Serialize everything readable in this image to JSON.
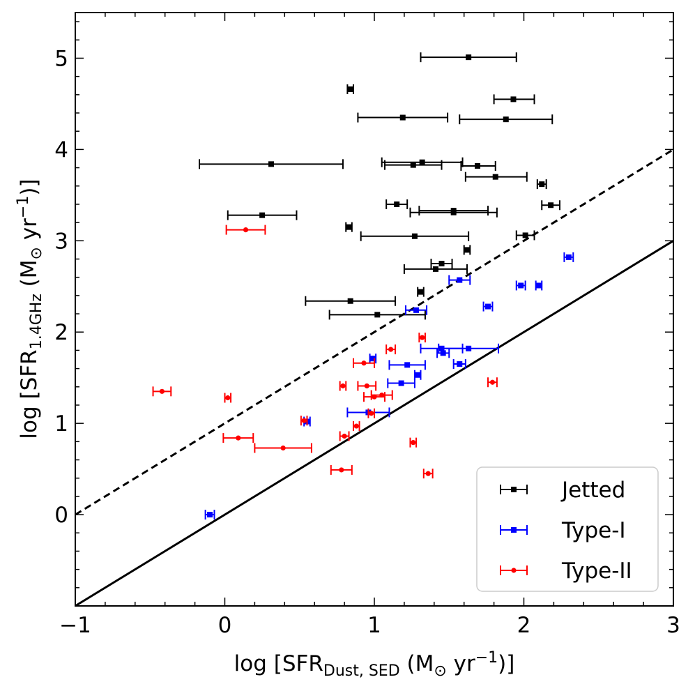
{
  "chart_data": {
    "type": "scatter",
    "title": "",
    "xlabel": {
      "prefix": "log [SFR",
      "sub": "Dust, SED",
      "mid": " (M",
      "sun": "⊙",
      "unit": " yr",
      "sup": "−1",
      "suffix": ")]"
    },
    "ylabel": {
      "prefix": "log [SFR",
      "sub": "1.4GHz",
      "mid": " (M",
      "sun": "⊙",
      "unit": " yr",
      "sup": "−1",
      "suffix": ")]"
    },
    "xlim": [
      -1,
      3
    ],
    "ylim": [
      -1,
      5.5
    ],
    "xticks": [
      -1,
      0,
      1,
      2,
      3
    ],
    "xtick_labels": [
      "−1",
      "0",
      "1",
      "2",
      "3"
    ],
    "yticks": [
      0,
      1,
      2,
      3,
      4,
      5
    ],
    "ytick_labels": [
      "0",
      "1",
      "2",
      "3",
      "4",
      "5"
    ],
    "reference_lines": [
      {
        "name": "one-to-one",
        "style": "solid",
        "intercept": 0
      },
      {
        "name": "offset-one-dex",
        "style": "dashed",
        "intercept": 1
      }
    ],
    "legend_position": "bottom-right",
    "series": [
      {
        "name": "Jetted",
        "color": "#000000",
        "marker": "square",
        "points": [
          {
            "x": 1.63,
            "y": 5.01,
            "xlo": 1.31,
            "xhi": 1.95
          },
          {
            "x": 0.84,
            "y": 4.66,
            "xlo": 0.82,
            "xhi": 0.86
          },
          {
            "x": 1.93,
            "y": 4.55,
            "xlo": 1.8,
            "xhi": 2.07
          },
          {
            "x": 1.19,
            "y": 4.35,
            "xlo": 0.89,
            "xhi": 1.49
          },
          {
            "x": 1.88,
            "y": 4.33,
            "xlo": 1.57,
            "xhi": 2.19
          },
          {
            "x": 0.31,
            "y": 3.84,
            "xlo": -0.17,
            "xhi": 0.79
          },
          {
            "x": 1.32,
            "y": 3.86,
            "xlo": 1.05,
            "xhi": 1.59
          },
          {
            "x": 1.26,
            "y": 3.83,
            "xlo": 1.07,
            "xhi": 1.45
          },
          {
            "x": 1.69,
            "y": 3.82,
            "xlo": 1.58,
            "xhi": 1.81
          },
          {
            "x": 1.81,
            "y": 3.7,
            "xlo": 1.61,
            "xhi": 2.02
          },
          {
            "x": 2.12,
            "y": 3.62,
            "xlo": 2.09,
            "xhi": 2.15
          },
          {
            "x": 1.15,
            "y": 3.4,
            "xlo": 1.08,
            "xhi": 1.22
          },
          {
            "x": 2.18,
            "y": 3.39,
            "xlo": 2.12,
            "xhi": 2.24
          },
          {
            "x": 1.53,
            "y": 3.33,
            "xlo": 1.3,
            "xhi": 1.76
          },
          {
            "x": 1.53,
            "y": 3.31,
            "xlo": 1.24,
            "xhi": 1.82
          },
          {
            "x": 0.25,
            "y": 3.28,
            "xlo": 0.02,
            "xhi": 0.48
          },
          {
            "x": 0.83,
            "y": 3.15,
            "xlo": 0.81,
            "xhi": 0.85
          },
          {
            "x": 2.01,
            "y": 3.06,
            "xlo": 1.95,
            "xhi": 2.07
          },
          {
            "x": 1.27,
            "y": 3.05,
            "xlo": 0.91,
            "xhi": 1.63
          },
          {
            "x": 1.62,
            "y": 2.9,
            "xlo": 1.6,
            "xhi": 1.64
          },
          {
            "x": 1.45,
            "y": 2.75,
            "xlo": 1.38,
            "xhi": 1.52
          },
          {
            "x": 1.41,
            "y": 2.69,
            "xlo": 1.2,
            "xhi": 1.62
          },
          {
            "x": 1.31,
            "y": 2.44,
            "xlo": 1.29,
            "xhi": 1.33
          },
          {
            "x": 0.84,
            "y": 2.34,
            "xlo": 0.54,
            "xhi": 1.14
          },
          {
            "x": 1.02,
            "y": 2.19,
            "xlo": 0.7,
            "xhi": 1.34
          }
        ]
      },
      {
        "name": "Type-I",
        "color": "#0000ff",
        "marker": "square",
        "points": [
          {
            "x": 2.3,
            "y": 2.82,
            "xlo": 2.27,
            "xhi": 2.33
          },
          {
            "x": 1.57,
            "y": 2.57,
            "xlo": 1.5,
            "xhi": 1.64
          },
          {
            "x": 1.98,
            "y": 2.51,
            "xlo": 1.95,
            "xhi": 2.01
          },
          {
            "x": 2.1,
            "y": 2.51,
            "xlo": 2.08,
            "xhi": 2.12
          },
          {
            "x": 1.76,
            "y": 2.28,
            "xlo": 1.73,
            "xhi": 1.79
          },
          {
            "x": 1.28,
            "y": 2.24,
            "xlo": 1.21,
            "xhi": 1.35
          },
          {
            "x": 1.45,
            "y": 1.82,
            "xlo": 1.31,
            "xhi": 1.59
          },
          {
            "x": 1.63,
            "y": 1.82,
            "xlo": 1.43,
            "xhi": 1.83
          },
          {
            "x": 1.46,
            "y": 1.77,
            "xlo": 1.42,
            "xhi": 1.5
          },
          {
            "x": 0.99,
            "y": 1.71,
            "xlo": 0.97,
            "xhi": 1.01
          },
          {
            "x": 1.22,
            "y": 1.64,
            "xlo": 1.1,
            "xhi": 1.34
          },
          {
            "x": 1.57,
            "y": 1.65,
            "xlo": 1.53,
            "xhi": 1.61
          },
          {
            "x": 1.29,
            "y": 1.53,
            "xlo": 1.27,
            "xhi": 1.31
          },
          {
            "x": 1.18,
            "y": 1.44,
            "xlo": 1.09,
            "xhi": 1.27
          },
          {
            "x": 0.96,
            "y": 1.12,
            "xlo": 0.82,
            "xhi": 1.1
          },
          {
            "x": 0.55,
            "y": 1.02,
            "xlo": 0.53,
            "xhi": 0.57
          },
          {
            "x": -0.1,
            "y": 0.0,
            "xlo": -0.13,
            "xhi": -0.07
          }
        ]
      },
      {
        "name": "Type-II",
        "color": "#ff0000",
        "marker": "circle",
        "points": [
          {
            "x": 0.14,
            "y": 3.12,
            "xlo": 0.01,
            "xhi": 0.27
          },
          {
            "x": 1.32,
            "y": 1.94,
            "xlo": 1.3,
            "xhi": 1.34
          },
          {
            "x": 1.11,
            "y": 1.81,
            "xlo": 1.08,
            "xhi": 1.14
          },
          {
            "x": 0.93,
            "y": 1.66,
            "xlo": 0.86,
            "xhi": 1.0
          },
          {
            "x": 1.79,
            "y": 1.45,
            "xlo": 1.76,
            "xhi": 1.82
          },
          {
            "x": 0.79,
            "y": 1.41,
            "xlo": 0.77,
            "xhi": 0.81
          },
          {
            "x": 0.95,
            "y": 1.41,
            "xlo": 0.89,
            "xhi": 1.01
          },
          {
            "x": -0.42,
            "y": 1.35,
            "xlo": -0.48,
            "xhi": -0.36
          },
          {
            "x": 1.05,
            "y": 1.31,
            "xlo": 0.98,
            "xhi": 1.12
          },
          {
            "x": 1.0,
            "y": 1.29,
            "xlo": 0.93,
            "xhi": 1.07
          },
          {
            "x": 0.02,
            "y": 1.28,
            "xlo": 0.0,
            "xhi": 0.04
          },
          {
            "x": 0.98,
            "y": 1.11,
            "xlo": 0.96,
            "xhi": 1.0
          },
          {
            "x": 0.53,
            "y": 1.03,
            "xlo": 0.51,
            "xhi": 0.55
          },
          {
            "x": 0.88,
            "y": 0.97,
            "xlo": 0.86,
            "xhi": 0.9
          },
          {
            "x": 0.8,
            "y": 0.86,
            "xlo": 0.77,
            "xhi": 0.83
          },
          {
            "x": 0.09,
            "y": 0.84,
            "xlo": -0.01,
            "xhi": 0.19
          },
          {
            "x": 1.26,
            "y": 0.79,
            "xlo": 1.24,
            "xhi": 1.28
          },
          {
            "x": 0.39,
            "y": 0.73,
            "xlo": 0.2,
            "xhi": 0.58
          },
          {
            "x": 0.78,
            "y": 0.49,
            "xlo": 0.71,
            "xhi": 0.85
          },
          {
            "x": 1.36,
            "y": 0.45,
            "xlo": 1.33,
            "xhi": 1.39
          }
        ]
      }
    ]
  }
}
